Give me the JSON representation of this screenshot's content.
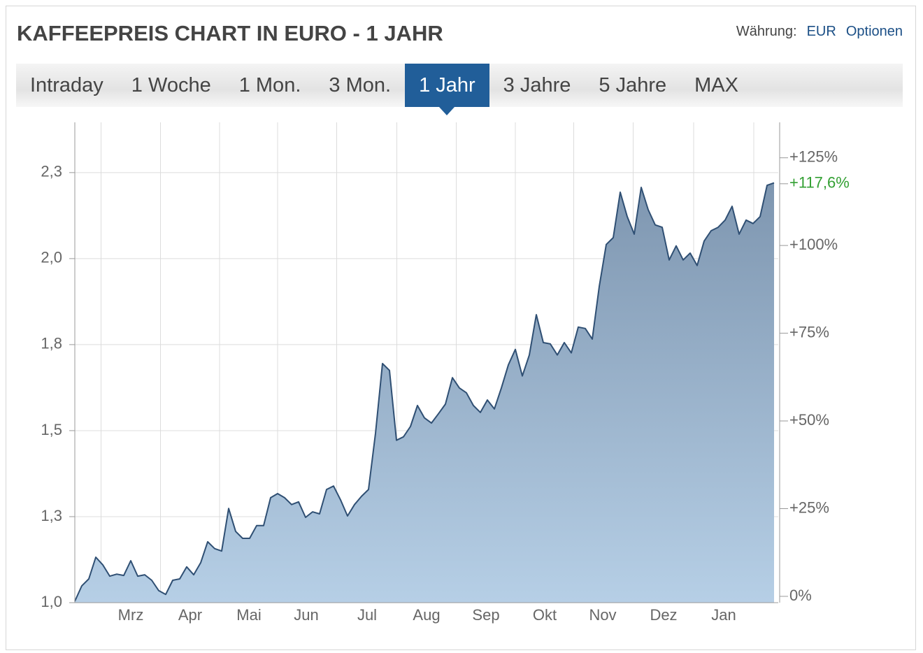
{
  "header": {
    "title": "KAFFEEPREIS CHART IN EURO - 1 JAHR",
    "currency_label": "Währung:",
    "currency": "EUR",
    "options": "Optionen"
  },
  "tabs": [
    "Intraday",
    "1 Woche",
    "1 Mon.",
    "3 Mon.",
    "1 Jahr",
    "3 Jahre",
    "5 Jahre",
    "MAX"
  ],
  "active_tab": 4,
  "chart_data": {
    "type": "area",
    "color": "#2f4f73",
    "fill_top": "#7e96b0",
    "fill_bottom": "#b6cfe6",
    "values": [
      1.004,
      1.049,
      1.069,
      1.132,
      1.11,
      1.077,
      1.083,
      1.079,
      1.122,
      1.077,
      1.081,
      1.065,
      1.035,
      1.024,
      1.065,
      1.069,
      1.104,
      1.081,
      1.116,
      1.177,
      1.157,
      1.15,
      1.274,
      1.207,
      1.187,
      1.187,
      1.224,
      1.224,
      1.305,
      1.317,
      1.305,
      1.285,
      1.293,
      1.248,
      1.264,
      1.258,
      1.329,
      1.339,
      1.299,
      1.252,
      1.285,
      1.309,
      1.329,
      1.492,
      1.695,
      1.675,
      1.472,
      1.482,
      1.512,
      1.573,
      1.537,
      1.522,
      1.549,
      1.577,
      1.654,
      1.624,
      1.61,
      1.573,
      1.553,
      1.589,
      1.563,
      1.624,
      1.691,
      1.736,
      1.659,
      1.72,
      1.837,
      1.756,
      1.752,
      1.72,
      1.756,
      1.726,
      1.801,
      1.797,
      1.766,
      1.919,
      2.041,
      2.061,
      2.193,
      2.122,
      2.071,
      2.207,
      2.142,
      2.098,
      2.091,
      1.996,
      2.037,
      1.996,
      2.016,
      1.98,
      2.051,
      2.081,
      2.091,
      2.112,
      2.152,
      2.071,
      2.112,
      2.102,
      2.122,
      2.213,
      2.22
    ],
    "xlim": [
      0,
      100.6
    ],
    "xticks": [
      {
        "value": 8.0,
        "label": "Mrz"
      },
      {
        "value": 16.5,
        "label": "Apr"
      },
      {
        "value": 24.9,
        "label": "Mai"
      },
      {
        "value": 33.1,
        "label": "Jun"
      },
      {
        "value": 41.8,
        "label": "Jul"
      },
      {
        "value": 50.3,
        "label": "Aug"
      },
      {
        "value": 58.8,
        "label": "Sep"
      },
      {
        "value": 67.2,
        "label": "Okt"
      },
      {
        "value": 75.5,
        "label": "Nov"
      },
      {
        "value": 84.2,
        "label": "Dez"
      },
      {
        "value": 92.8,
        "label": "Jan"
      }
    ],
    "ylim": [
      1.0,
      2.396
    ],
    "yticks": [
      {
        "value": 1.0,
        "label": "1,0"
      },
      {
        "value": 1.25,
        "label": "1,3"
      },
      {
        "value": 1.5,
        "label": "1,5"
      },
      {
        "value": 1.75,
        "label": "1,8"
      },
      {
        "value": 2.0,
        "label": "2,0"
      },
      {
        "value": 2.25,
        "label": "2,3"
      }
    ],
    "y2lim": [
      -1.8,
      135.1
    ],
    "y2ticks": [
      {
        "value": 0,
        "label": "0%"
      },
      {
        "value": 25,
        "label": "+25%"
      },
      {
        "value": 50,
        "label": "+50%"
      },
      {
        "value": 75,
        "label": "+75%"
      },
      {
        "value": 100,
        "label": "+100%"
      },
      {
        "value": 125,
        "label": "+125%"
      }
    ],
    "change": {
      "value": 117.6,
      "label": "+117,6%",
      "color": "#33a033",
      "axis": "y2"
    },
    "grid": true
  }
}
